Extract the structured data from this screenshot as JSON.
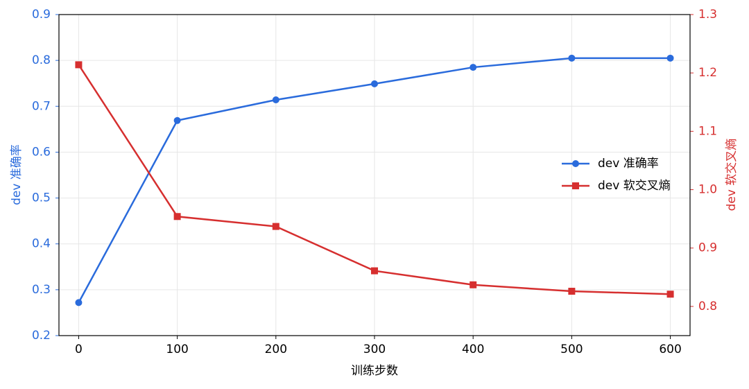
{
  "chart_data": {
    "type": "line",
    "x": [
      0,
      100,
      200,
      300,
      400,
      500,
      600
    ],
    "xlabel": "训练步数",
    "ylabel": "dev 准确率",
    "y2label": "dev 软交叉熵",
    "xlim": [
      -20,
      620
    ],
    "xticks": [
      0,
      100,
      200,
      300,
      400,
      500,
      600
    ],
    "ylim": [
      0.2,
      0.9
    ],
    "yticks": [
      0.2,
      0.3,
      0.4,
      0.5,
      0.6,
      0.7,
      0.8,
      0.9
    ],
    "y2lim": [
      0.75,
      1.3
    ],
    "y2ticks": [
      0.8,
      0.9,
      {
        "value": 1,
        "label": "1.0"
      },
      1.1,
      1.2,
      1.3
    ],
    "grid": true,
    "legend": "right",
    "series": [
      {
        "name": "dev 准确率",
        "color": "#2a6bdc",
        "marker": "circle",
        "values": [
          0.272,
          0.669,
          0.714,
          0.749,
          0.785,
          0.805,
          0.805
        ]
      },
      {
        "name": "dev 软交叉熵",
        "color": "#d62f2f",
        "marker": "square",
        "axis": "y2",
        "values": [
          1.214,
          0.954,
          0.937,
          0.861,
          0.837,
          0.826,
          0.821
        ]
      }
    ]
  }
}
